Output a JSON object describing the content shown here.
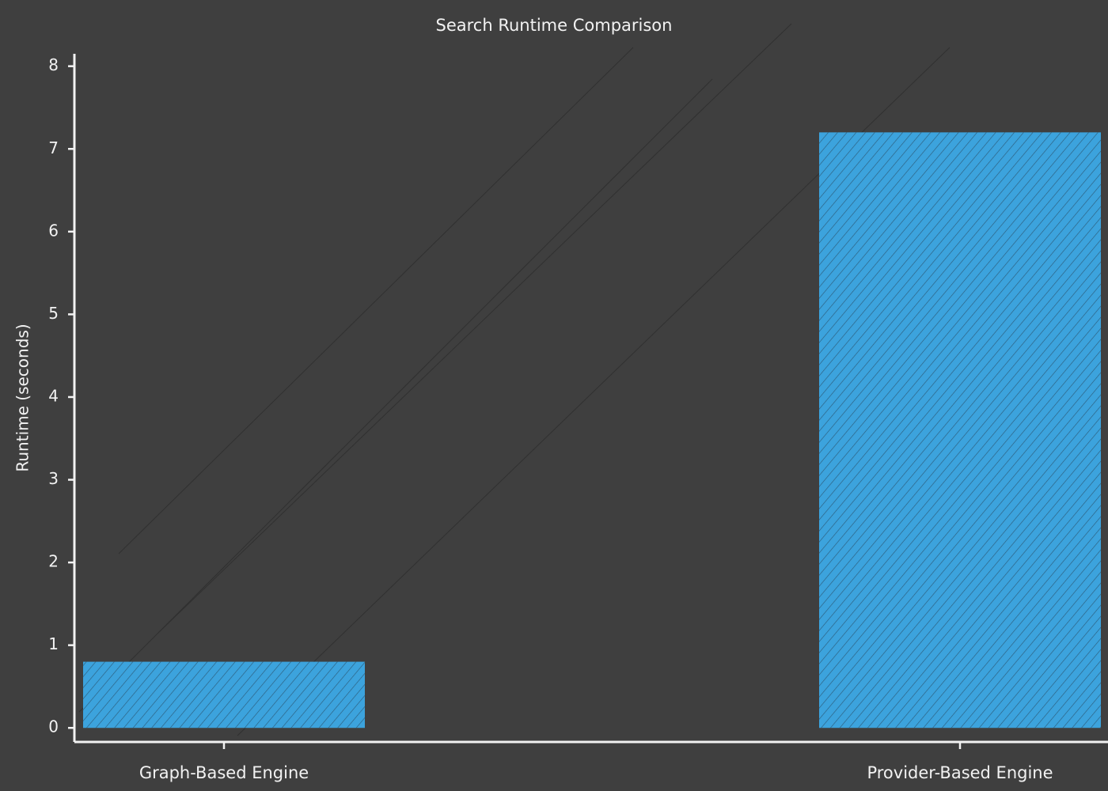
{
  "chart_data": {
    "type": "bar",
    "title": "Search Runtime Comparison",
    "y_label": "Runtime (seconds)",
    "categories": [
      "Graph-Based Engine",
      "Provider-Based Engine"
    ],
    "values": [
      0.8,
      7.2
    ],
    "color": "#3ca3dd",
    "ylim": [
      -0.17,
      8.15
    ],
    "yticks": [
      0,
      1,
      2,
      3,
      4,
      5,
      6,
      7,
      8
    ],
    "grid": false
  }
}
